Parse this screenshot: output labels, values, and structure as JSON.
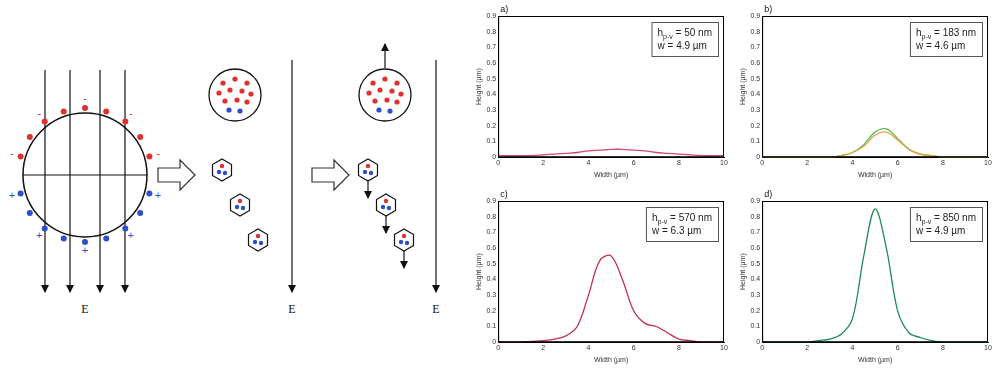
{
  "diagram": {
    "field_label": "E",
    "negative_sign": "-",
    "positive_sign": "+"
  },
  "chart_data": [
    {
      "type": "line",
      "panel": "a)",
      "annotations": [
        {
          "text": "h",
          "subscript": "p-v",
          "text_after": " = 50 nm"
        },
        {
          "text": "w = 4.9 µm"
        }
      ],
      "x_label": "Width (µm)",
      "y_label": "Height (µm)",
      "x": [
        0,
        0.5,
        1,
        1.5,
        2,
        2.5,
        3,
        3.5,
        4,
        4.5,
        5,
        5.5,
        6,
        6.5,
        7,
        7.5,
        8,
        8.5,
        9,
        9.5,
        10
      ],
      "series": [
        {
          "color": "#d0457a",
          "values": [
            0.01,
            0.01,
            0.01,
            0.01,
            0.015,
            0.02,
            0.025,
            0.03,
            0.04,
            0.045,
            0.05,
            0.05,
            0.045,
            0.04,
            0.03,
            0.025,
            0.02,
            0.015,
            0.01,
            0.01,
            0.01
          ]
        }
      ],
      "xlim": [
        0,
        10
      ],
      "xticks": [
        0,
        2,
        4,
        6,
        8,
        10
      ],
      "ylim": [
        0,
        0.9
      ],
      "yticks": [
        0,
        0.1,
        0.2,
        0.3,
        0.4,
        0.5,
        0.6,
        0.7,
        0.8,
        0.9
      ],
      "grid": false
    },
    {
      "type": "line",
      "panel": "b)",
      "annotations": [
        {
          "text": "h",
          "subscript": "p-v",
          "text_after": " = 183 nm"
        },
        {
          "text": "w = 4.6 µm"
        }
      ],
      "x_label": "Width (µm)",
      "y_label": "Height (µm)",
      "x": [
        0,
        0.5,
        1,
        1.5,
        2,
        2.5,
        3,
        3.5,
        4,
        4.5,
        5,
        5.5,
        6,
        6.5,
        7,
        7.5,
        8,
        8.5,
        9,
        9.5,
        10
      ],
      "series": [
        {
          "color": "#e8a33c",
          "values": [
            0,
            0,
            0,
            0,
            0,
            0,
            0,
            0.01,
            0.03,
            0.07,
            0.14,
            0.16,
            0.11,
            0.05,
            0.02,
            0.01,
            0,
            0,
            0,
            0,
            0
          ]
        },
        {
          "color": "#5cb85c",
          "values": [
            0,
            0,
            0,
            0,
            0,
            0,
            0,
            0.01,
            0.03,
            0.08,
            0.16,
            0.18,
            0.12,
            0.05,
            0.02,
            0.01,
            0,
            0,
            0,
            0,
            0
          ]
        }
      ],
      "xlim": [
        0,
        10
      ],
      "xticks": [
        0,
        2,
        4,
        6,
        8,
        10
      ],
      "ylim": [
        0,
        0.9
      ],
      "yticks": [
        0,
        0.1,
        0.2,
        0.3,
        0.4,
        0.5,
        0.6,
        0.7,
        0.8,
        0.9
      ],
      "grid": false
    },
    {
      "type": "line",
      "panel": "c)",
      "annotations": [
        {
          "text": "h",
          "subscript": "p-v",
          "text_after": " = 570 nm"
        },
        {
          "text": "w = 6.3 µm"
        }
      ],
      "x_label": "Width (µm)",
      "y_label": "Height (µm)",
      "x": [
        0,
        0.5,
        1,
        1.5,
        2,
        2.5,
        3,
        3.5,
        4,
        4.5,
        5,
        5.5,
        6,
        6.5,
        7,
        7.5,
        8,
        8.5,
        9,
        9.5,
        10
      ],
      "series": [
        {
          "color": "#c0304f",
          "values": [
            0,
            0,
            0,
            0.005,
            0.01,
            0.02,
            0.04,
            0.1,
            0.3,
            0.52,
            0.55,
            0.4,
            0.2,
            0.12,
            0.1,
            0.06,
            0.02,
            0.01,
            0,
            0,
            0
          ]
        }
      ],
      "xlim": [
        0,
        10
      ],
      "xticks": [
        0,
        2,
        4,
        6,
        8,
        10
      ],
      "ylim": [
        0,
        0.9
      ],
      "yticks": [
        0,
        0.1,
        0.2,
        0.3,
        0.4,
        0.5,
        0.6,
        0.7,
        0.8,
        0.9
      ],
      "grid": false
    },
    {
      "type": "line",
      "panel": "d)",
      "annotations": [
        {
          "text": "h",
          "subscript": "p-v",
          "text_after": " = 850 nm"
        },
        {
          "text": "w = 4.9 µm"
        }
      ],
      "x_label": "Width (µm)",
      "y_label": "Height (µm)",
      "x": [
        0,
        0.5,
        1,
        1.5,
        2,
        2.5,
        3,
        3.5,
        4,
        4.5,
        5,
        5.5,
        6,
        6.5,
        7,
        7.5,
        8,
        8.5,
        9,
        9.5,
        10
      ],
      "series": [
        {
          "color": "#1f8a55",
          "values": [
            0,
            0,
            0,
            0,
            0,
            0.01,
            0.02,
            0.05,
            0.15,
            0.55,
            0.85,
            0.6,
            0.2,
            0.06,
            0.03,
            0.01,
            0,
            0,
            0,
            0,
            0
          ]
        }
      ],
      "xlim": [
        0,
        10
      ],
      "xticks": [
        0,
        2,
        4,
        6,
        8,
        10
      ],
      "ylim": [
        0,
        0.9
      ],
      "yticks": [
        0,
        0.1,
        0.2,
        0.3,
        0.4,
        0.5,
        0.6,
        0.7,
        0.8,
        0.9
      ],
      "grid": false
    }
  ]
}
